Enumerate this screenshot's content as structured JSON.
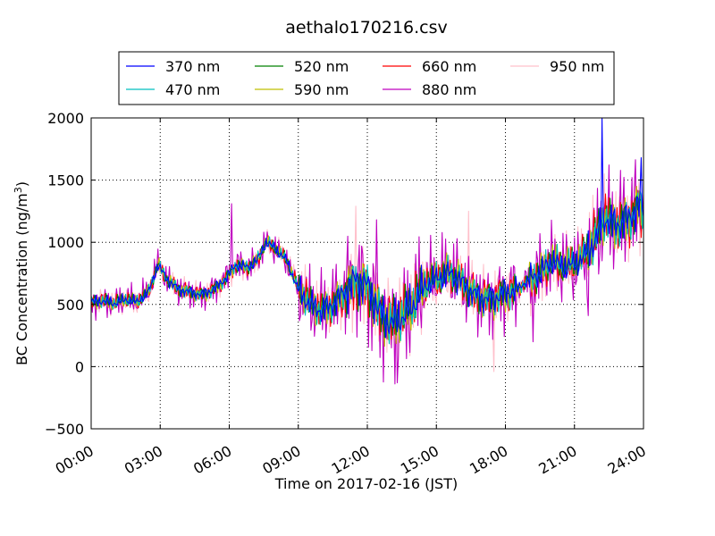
{
  "chart_data": {
    "type": "line",
    "title": "aethalo170216.csv",
    "xlabel": "Time on 2017-02-16 (JST)",
    "ylabel_main": "BC Concentration (ng/m",
    "ylabel_sup": "3",
    "ylabel_end": ")",
    "xlim_hours": [
      0,
      24
    ],
    "ylim": [
      -500,
      2000
    ],
    "grid": true,
    "legend_position": "top-center",
    "x_ticks": [
      {
        "hour": 0,
        "label": "00:00"
      },
      {
        "hour": 3,
        "label": "03:00"
      },
      {
        "hour": 6,
        "label": "06:00"
      },
      {
        "hour": 9,
        "label": "09:00"
      },
      {
        "hour": 12,
        "label": "12:00"
      },
      {
        "hour": 15,
        "label": "15:00"
      },
      {
        "hour": 18,
        "label": "18:00"
      },
      {
        "hour": 21,
        "label": "21:00"
      },
      {
        "hour": 24,
        "label": "24:00"
      }
    ],
    "y_ticks": [
      {
        "value": -500,
        "label": "−500"
      },
      {
        "value": 0,
        "label": "0"
      },
      {
        "value": 500,
        "label": "500"
      },
      {
        "value": 1000,
        "label": "1000"
      },
      {
        "value": 1500,
        "label": "1500"
      },
      {
        "value": 2000,
        "label": "2000"
      }
    ],
    "series": [
      {
        "name": "370 nm",
        "color": "#0000ff",
        "spread": 1.0,
        "phase": 0.0
      },
      {
        "name": "470 nm",
        "color": "#00bfbf",
        "spread": 1.08,
        "phase": 0.7
      },
      {
        "name": "520 nm",
        "color": "#008000",
        "spread": 1.15,
        "phase": 1.4
      },
      {
        "name": "590 nm",
        "color": "#bfbf00",
        "spread": 1.2,
        "phase": 2.1
      },
      {
        "name": "660 nm",
        "color": "#ff0000",
        "spread": 1.3,
        "phase": 2.8
      },
      {
        "name": "880 nm",
        "color": "#bf00bf",
        "spread": 2.6,
        "phase": 3.5
      },
      {
        "name": "950 nm",
        "color": "#ffc0cb",
        "spread": 2.1,
        "phase": 4.2
      }
    ],
    "baseline_hours": [
      0,
      0.5,
      1,
      1.5,
      2,
      2.5,
      2.9,
      3.3,
      3.8,
      4.3,
      4.8,
      5.3,
      5.8,
      6.3,
      6.8,
      7.2,
      7.6,
      8.0,
      8.5,
      9.0,
      9.5,
      10.0,
      10.5,
      11.0,
      11.5,
      12.0,
      12.5,
      13.0,
      13.5,
      14.0,
      14.5,
      15.0,
      15.5,
      16.0,
      16.5,
      17.0,
      17.5,
      18.0,
      18.5,
      19.0,
      19.5,
      20.0,
      20.5,
      21.0,
      21.5,
      22.0,
      22.3,
      22.6,
      23.0,
      23.4,
      23.8,
      24.0
    ],
    "baseline_values": [
      520,
      530,
      510,
      540,
      520,
      600,
      820,
      700,
      620,
      600,
      580,
      620,
      700,
      820,
      800,
      850,
      1000,
      950,
      850,
      620,
      500,
      450,
      500,
      600,
      700,
      650,
      450,
      350,
      400,
      500,
      650,
      700,
      750,
      700,
      600,
      550,
      550,
      600,
      620,
      700,
      750,
      850,
      800,
      820,
      900,
      1050,
      1200,
      1150,
      1150,
      1200,
      1300,
      1250
    ],
    "spikes": [
      {
        "series": "370 nm",
        "hour": 22.2,
        "value": 2000
      },
      {
        "series": "370 nm",
        "hour": 23.9,
        "value": 1680
      },
      {
        "series": "880 nm",
        "hour": 6.1,
        "value": 1310
      },
      {
        "series": "880 nm",
        "hour": 13.3,
        "value": -130
      },
      {
        "series": "880 nm",
        "hour": 12.4,
        "value": 1180
      },
      {
        "series": "950 nm",
        "hour": 11.5,
        "value": 1290
      },
      {
        "series": "950 nm",
        "hour": 16.4,
        "value": 1250
      },
      {
        "series": "950 nm",
        "hour": 17.5,
        "value": -40
      },
      {
        "series": "880 nm",
        "hour": 19.2,
        "value": 200
      },
      {
        "series": "880 nm",
        "hour": 21.6,
        "value": 410
      }
    ]
  }
}
